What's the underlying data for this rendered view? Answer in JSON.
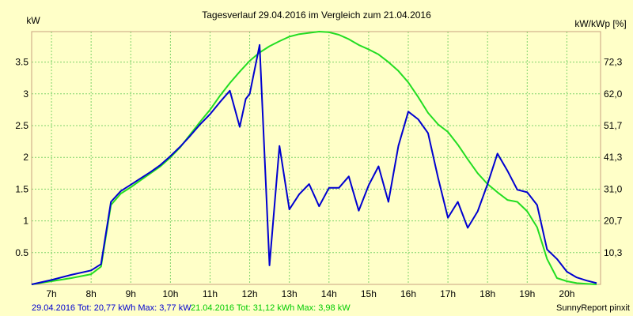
{
  "chart_data": {
    "type": "line",
    "title": "Tagesverlauf 29.04.2016 im Vergleich zum 21.04.2016",
    "ylabel_left": "kW",
    "ylabel_right": "kW/kWp [%]",
    "x_ticks": [
      "7h",
      "8h",
      "9h",
      "10h",
      "11h",
      "12h",
      "13h",
      "14h",
      "15h",
      "16h",
      "17h",
      "18h",
      "19h",
      "20h"
    ],
    "y_ticks_left": [
      "0.5",
      "1",
      "1.5",
      "2",
      "2.5",
      "3",
      "3.5"
    ],
    "y_ticks_right": [
      "10,3",
      "20,7",
      "31,0",
      "41,3",
      "51,7",
      "62,0",
      "72,3"
    ],
    "xlim": [
      6.5,
      20.85
    ],
    "ylim": [
      0,
      3.98
    ],
    "grid": true,
    "series": [
      {
        "name": "29.04.2016",
        "color": "#0000d0",
        "x": [
          6.5,
          7.0,
          7.5,
          8.0,
          8.25,
          8.5,
          8.75,
          9.0,
          9.25,
          9.5,
          9.75,
          10.0,
          10.25,
          10.5,
          10.75,
          11.0,
          11.25,
          11.5,
          11.75,
          11.9,
          12.0,
          12.25,
          12.5,
          12.75,
          13.0,
          13.25,
          13.5,
          13.75,
          14.0,
          14.25,
          14.5,
          14.75,
          15.0,
          15.25,
          15.5,
          15.75,
          16.0,
          16.25,
          16.5,
          16.75,
          17.0,
          17.25,
          17.5,
          17.75,
          18.0,
          18.25,
          18.5,
          18.75,
          19.0,
          19.25,
          19.5,
          19.75,
          20.0,
          20.25,
          20.5,
          20.75
        ],
        "values": [
          0.0,
          0.07,
          0.15,
          0.22,
          0.32,
          1.3,
          1.47,
          1.57,
          1.67,
          1.77,
          1.88,
          2.02,
          2.17,
          2.34,
          2.52,
          2.68,
          2.87,
          3.05,
          2.48,
          2.92,
          3.0,
          3.77,
          0.3,
          2.18,
          1.18,
          1.42,
          1.58,
          1.23,
          1.52,
          1.52,
          1.7,
          1.16,
          1.56,
          1.86,
          1.3,
          2.18,
          2.72,
          2.6,
          2.38,
          1.68,
          1.05,
          1.3,
          0.89,
          1.15,
          1.58,
          2.06,
          1.79,
          1.49,
          1.45,
          1.25,
          0.55,
          0.4,
          0.2,
          0.11,
          0.06,
          0.02
        ]
      },
      {
        "name": "21.04.2016",
        "color": "#22dd22",
        "x": [
          6.5,
          7.0,
          7.5,
          8.0,
          8.25,
          8.5,
          8.75,
          9.0,
          9.25,
          9.5,
          9.75,
          10.0,
          10.25,
          10.5,
          10.75,
          11.0,
          11.25,
          11.5,
          11.75,
          12.0,
          12.25,
          12.5,
          12.75,
          13.0,
          13.25,
          13.5,
          13.75,
          14.0,
          14.25,
          14.5,
          14.75,
          15.0,
          15.25,
          15.5,
          15.75,
          16.0,
          16.25,
          16.5,
          16.75,
          17.0,
          17.25,
          17.5,
          17.75,
          18.0,
          18.25,
          18.5,
          18.75,
          19.0,
          19.25,
          19.5,
          19.75,
          20.0,
          20.25,
          20.5,
          20.75
        ],
        "values": [
          0.0,
          0.05,
          0.1,
          0.16,
          0.28,
          1.25,
          1.43,
          1.53,
          1.64,
          1.75,
          1.86,
          2.0,
          2.16,
          2.36,
          2.56,
          2.75,
          2.97,
          3.17,
          3.35,
          3.52,
          3.65,
          3.75,
          3.83,
          3.9,
          3.94,
          3.96,
          3.98,
          3.97,
          3.93,
          3.86,
          3.77,
          3.7,
          3.62,
          3.5,
          3.36,
          3.18,
          2.95,
          2.7,
          2.52,
          2.4,
          2.2,
          1.97,
          1.75,
          1.58,
          1.45,
          1.33,
          1.3,
          1.15,
          0.9,
          0.4,
          0.1,
          0.05,
          0.02,
          0.01,
          0.0
        ]
      }
    ],
    "footer": {
      "series1_text": "29.04.2016 Tot: 20,77 kWh Max: 3,77 kW",
      "series2_text": "21.04.2016 Tot: 31,12 kWh Max: 3,98 kW",
      "credit": "SunnyReport pinxit"
    }
  }
}
